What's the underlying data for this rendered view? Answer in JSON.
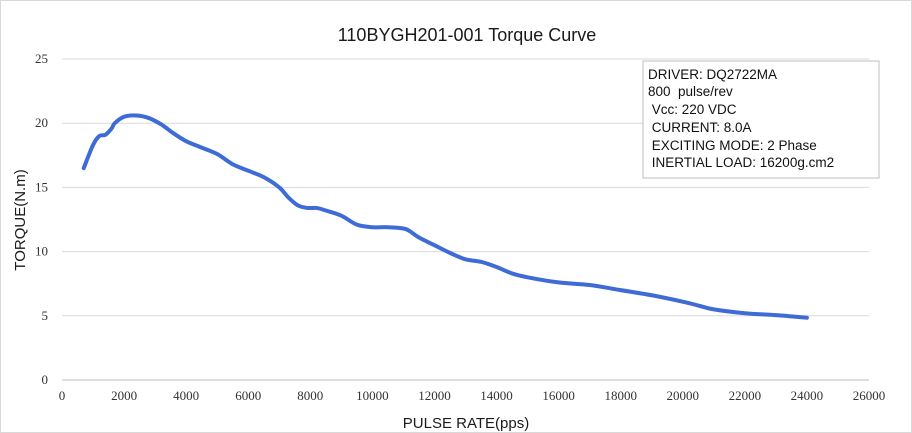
{
  "chart_data": {
    "type": "line",
    "title": "110BYGH201-001  Torque Curve",
    "xlabel": "PULSE RATE(pps)",
    "ylabel": "TORQUE(N.m)",
    "xlim": [
      0,
      26000
    ],
    "ylim": [
      0,
      25
    ],
    "x_ticks": [
      "0",
      "2000",
      "4000",
      "6000",
      "8000",
      "10000",
      "12000",
      "14000",
      "16000",
      "18000",
      "20000",
      "22000",
      "24000",
      "26000"
    ],
    "y_ticks": [
      "0",
      "5",
      "10",
      "15",
      "20",
      "25"
    ],
    "grid": "horizontal",
    "line_color": "#3e6bd6",
    "series": [
      {
        "x": [
          700,
          1000,
          1200,
          1400,
          1600,
          1700,
          2000,
          2400,
          2800,
          3200,
          3600,
          4000,
          4500,
          5000,
          5500,
          6000,
          6500,
          7000,
          7300,
          7600,
          7900,
          8200,
          8500,
          9000,
          9500,
          10000,
          10500,
          11000,
          11200,
          11500,
          12000,
          12500,
          13000,
          13500,
          14000,
          14500,
          15000,
          16000,
          17000,
          18000,
          19000,
          20000,
          20500,
          21000,
          22000,
          23000,
          24000
        ],
        "y": [
          16.5,
          18.3,
          19.0,
          19.1,
          19.6,
          20.0,
          20.5,
          20.6,
          20.4,
          19.9,
          19.2,
          18.6,
          18.1,
          17.6,
          16.8,
          16.3,
          15.8,
          15.0,
          14.2,
          13.6,
          13.4,
          13.4,
          13.2,
          12.8,
          12.1,
          11.9,
          11.9,
          11.8,
          11.6,
          11.1,
          10.5,
          9.9,
          9.4,
          9.2,
          8.8,
          8.3,
          8.0,
          7.6,
          7.4,
          7.0,
          6.6,
          6.1,
          5.8,
          5.5,
          5.2,
          5.05,
          4.85
        ]
      }
    ],
    "info_box": {
      "position": "top-right",
      "lines": [
        "DRIVER: DQ2722MA",
        "800  pulse/rev",
        " Vcc: 220 VDC",
        " CURRENT: 8.0A",
        " EXCITING MODE: 2 Phase",
        " INERTIAL LOAD: 16200g.cm2"
      ]
    }
  }
}
